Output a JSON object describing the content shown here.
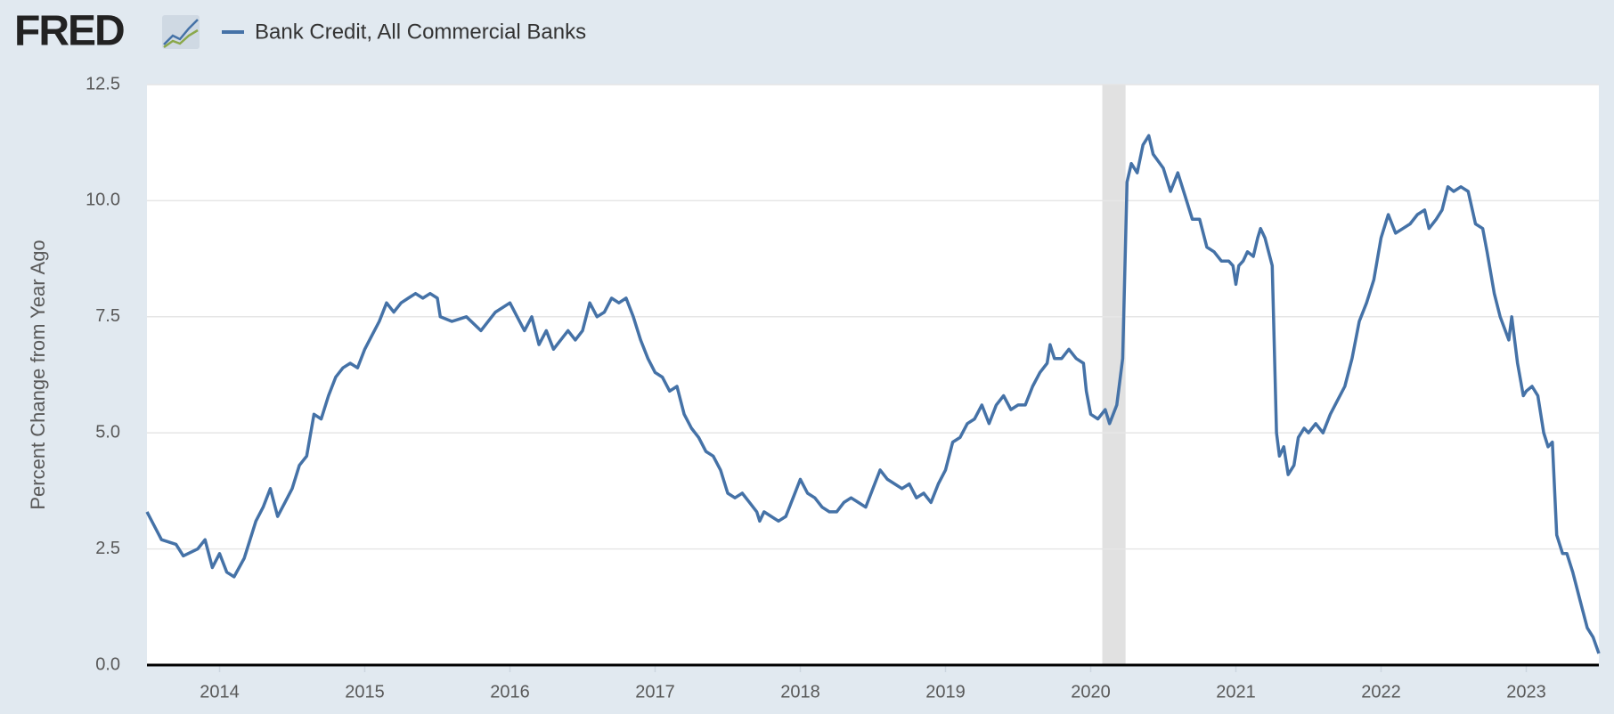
{
  "chart_data": {
    "type": "line",
    "logo": "FRED",
    "ylabel": "Percent Change from Year Ago",
    "xlim": [
      2013.5,
      2023.5
    ],
    "xticks": [
      2014,
      2015,
      2016,
      2017,
      2018,
      2019,
      2020,
      2021,
      2022,
      2023
    ],
    "ylim": [
      0,
      12.5
    ],
    "yticks": [
      {
        "value": 0,
        "label": "0.0"
      },
      2.5,
      {
        "value": 5,
        "label": "5.0"
      },
      7.5,
      {
        "value": 10,
        "label": "10.0"
      },
      12.5
    ],
    "grid": true,
    "recession": {
      "start": 2020.08,
      "end": 2020.24,
      "color": "#e1e1e1"
    },
    "x": [
      2013.5,
      2013.55,
      2013.6,
      2013.7,
      2013.75,
      2013.85,
      2013.9,
      2013.95,
      2014.0,
      2014.05,
      2014.1,
      2014.17,
      2014.25,
      2014.3,
      2014.35,
      2014.4,
      2014.45,
      2014.5,
      2014.55,
      2014.6,
      2014.65,
      2014.7,
      2014.75,
      2014.8,
      2014.85,
      2014.9,
      2014.95,
      2015.0,
      2015.05,
      2015.1,
      2015.15,
      2015.2,
      2015.25,
      2015.3,
      2015.35,
      2015.4,
      2015.45,
      2015.5,
      2015.52,
      2015.6,
      2015.7,
      2015.8,
      2015.9,
      2016.0,
      2016.05,
      2016.1,
      2016.15,
      2016.2,
      2016.25,
      2016.3,
      2016.35,
      2016.4,
      2016.45,
      2016.5,
      2016.55,
      2016.6,
      2016.65,
      2016.7,
      2016.75,
      2016.8,
      2016.85,
      2016.9,
      2016.95,
      2017.0,
      2017.05,
      2017.1,
      2017.15,
      2017.2,
      2017.25,
      2017.3,
      2017.35,
      2017.4,
      2017.45,
      2017.5,
      2017.55,
      2017.6,
      2017.65,
      2017.7,
      2017.72,
      2017.75,
      2017.8,
      2017.85,
      2017.9,
      2017.95,
      2018.0,
      2018.05,
      2018.1,
      2018.15,
      2018.2,
      2018.25,
      2018.3,
      2018.35,
      2018.4,
      2018.45,
      2018.5,
      2018.55,
      2018.6,
      2018.65,
      2018.7,
      2018.75,
      2018.8,
      2018.85,
      2018.9,
      2018.95,
      2019.0,
      2019.05,
      2019.1,
      2019.15,
      2019.2,
      2019.25,
      2019.3,
      2019.35,
      2019.4,
      2019.45,
      2019.5,
      2019.55,
      2019.6,
      2019.65,
      2019.7,
      2019.72,
      2019.75,
      2019.8,
      2019.85,
      2019.9,
      2019.95,
      2019.97,
      2020.0,
      2020.05,
      2020.1,
      2020.13,
      2020.18,
      2020.22,
      2020.25,
      2020.28,
      2020.32,
      2020.36,
      2020.4,
      2020.43,
      2020.5,
      2020.55,
      2020.6,
      2020.65,
      2020.7,
      2020.75,
      2020.8,
      2020.85,
      2020.9,
      2020.95,
      2020.98,
      2021.0,
      2021.02,
      2021.05,
      2021.08,
      2021.12,
      2021.15,
      2021.17,
      2021.2,
      2021.25,
      2021.28,
      2021.3,
      2021.33,
      2021.36,
      2021.4,
      2021.43,
      2021.47,
      2021.5,
      2021.55,
      2021.6,
      2021.65,
      2021.7,
      2021.75,
      2021.8,
      2021.85,
      2021.9,
      2021.95,
      2022.0,
      2022.05,
      2022.1,
      2022.15,
      2022.2,
      2022.25,
      2022.3,
      2022.33,
      2022.38,
      2022.42,
      2022.46,
      2022.5,
      2022.55,
      2022.6,
      2022.65,
      2022.7,
      2022.73,
      2022.78,
      2022.82,
      2022.88,
      2022.9,
      2022.94,
      2022.98,
      2023.0,
      2023.04,
      2023.08,
      2023.12,
      2023.15,
      2023.18,
      2023.21,
      2023.25,
      2023.28,
      2023.32,
      2023.37,
      2023.42,
      2023.46,
      2023.5
    ],
    "series": [
      {
        "name": "Bank Credit, All Commercial Banks",
        "color": "#4572a7",
        "values": [
          3.3,
          3.0,
          2.7,
          2.6,
          2.35,
          2.5,
          2.7,
          2.1,
          2.4,
          2.0,
          1.9,
          2.3,
          3.1,
          3.4,
          3.8,
          3.2,
          3.5,
          3.8,
          4.3,
          4.5,
          5.4,
          5.3,
          5.8,
          6.2,
          6.4,
          6.5,
          6.4,
          6.8,
          7.1,
          7.4,
          7.8,
          7.6,
          7.8,
          7.9,
          8.0,
          7.9,
          8.0,
          7.9,
          7.5,
          7.4,
          7.5,
          7.2,
          7.6,
          7.8,
          7.5,
          7.2,
          7.5,
          6.9,
          7.2,
          6.8,
          7.0,
          7.2,
          7.0,
          7.2,
          7.8,
          7.5,
          7.6,
          7.9,
          7.8,
          7.9,
          7.5,
          7.0,
          6.6,
          6.3,
          6.2,
          5.9,
          6.0,
          5.4,
          5.1,
          4.9,
          4.6,
          4.5,
          4.2,
          3.7,
          3.6,
          3.7,
          3.5,
          3.3,
          3.1,
          3.3,
          3.2,
          3.1,
          3.2,
          3.6,
          4.0,
          3.7,
          3.6,
          3.4,
          3.3,
          3.3,
          3.5,
          3.6,
          3.5,
          3.4,
          3.8,
          4.2,
          4.0,
          3.9,
          3.8,
          3.9,
          3.6,
          3.7,
          3.5,
          3.9,
          4.2,
          4.8,
          4.9,
          5.2,
          5.3,
          5.6,
          5.2,
          5.6,
          5.8,
          5.5,
          5.6,
          5.6,
          6.0,
          6.3,
          6.5,
          6.9,
          6.6,
          6.6,
          6.8,
          6.6,
          6.5,
          5.9,
          5.4,
          5.3,
          5.5,
          5.2,
          5.6,
          6.6,
          10.4,
          10.8,
          10.6,
          11.2,
          11.4,
          11.0,
          10.7,
          10.2,
          10.6,
          10.1,
          9.6,
          9.6,
          9.0,
          8.9,
          8.7,
          8.7,
          8.6,
          8.2,
          8.6,
          8.7,
          8.9,
          8.8,
          9.2,
          9.4,
          9.2,
          8.6,
          5.0,
          4.5,
          4.7,
          4.1,
          4.3,
          4.9,
          5.1,
          5.0,
          5.2,
          5.0,
          5.4,
          5.7,
          6.0,
          6.6,
          7.4,
          7.8,
          8.3,
          9.2,
          9.7,
          9.3,
          9.4,
          9.5,
          9.7,
          9.8,
          9.4,
          9.6,
          9.8,
          10.3,
          10.2,
          10.3,
          10.2,
          9.5,
          9.4,
          8.9,
          8.0,
          7.5,
          7.0,
          7.5,
          6.5,
          5.8,
          5.9,
          6.0,
          5.8,
          5.0,
          4.7,
          4.8,
          2.8,
          2.4,
          2.4,
          2.0,
          1.4,
          0.8,
          0.6,
          0.25
        ]
      }
    ]
  }
}
